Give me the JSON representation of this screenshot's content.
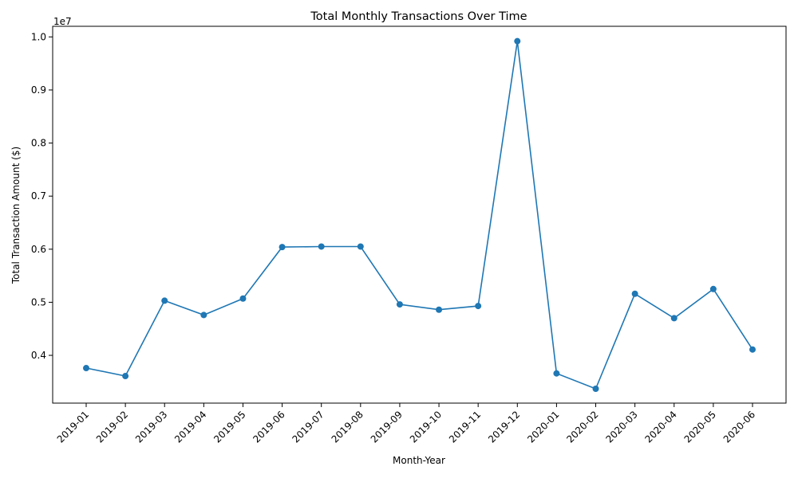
{
  "chart_data": {
    "type": "line",
    "title": "Total Monthly Transactions Over Time",
    "xlabel": "Month-Year",
    "ylabel": "Total Transaction Amount ($)",
    "y_offset_label": "1e7",
    "y_scale_factor": 10000000,
    "ylim": [
      3.1,
      10.2
    ],
    "yticks": [
      0.4,
      0.5,
      0.6,
      0.7,
      0.8,
      0.9,
      1.0
    ],
    "ytick_labels": [
      "0.4",
      "0.5",
      "0.6",
      "0.7",
      "0.8",
      "0.9",
      "1.0"
    ],
    "grid": false,
    "legend": "none",
    "color": "#1f77b4",
    "categories": [
      "2019-01",
      "2019-02",
      "2019-03",
      "2019-04",
      "2019-05",
      "2019-06",
      "2019-07",
      "2019-08",
      "2019-09",
      "2019-10",
      "2019-11",
      "2019-12",
      "2020-01",
      "2020-02",
      "2020-03",
      "2020-04",
      "2020-05",
      "2020-06"
    ],
    "series": [
      {
        "values": [
          3760000,
          3610000,
          5030000,
          4760000,
          5070000,
          6040000,
          6050000,
          6050000,
          4960000,
          4860000,
          4930000,
          9920000,
          3660000,
          3370000,
          5160000,
          4700000,
          5250000,
          4110000
        ]
      }
    ]
  }
}
